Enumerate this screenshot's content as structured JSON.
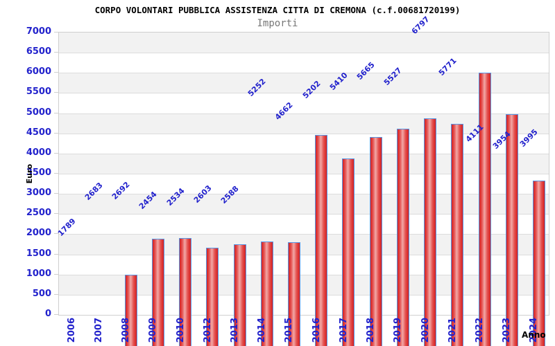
{
  "header": {
    "title": "CORPO VOLONTARI PUBBLICA ASSISTENZA CITTA DI CREMONA (c.f.00681720199)",
    "subtitle": "Importi"
  },
  "chart_data": {
    "type": "bar",
    "title": "CORPO VOLONTARI PUBBLICA ASSISTENZA CITTA DI CREMONA (c.f.00681720199)",
    "subtitle": "Importi",
    "xlabel": "Anno",
    "ylabel": "Euro",
    "categories": [
      "2006",
      "2007",
      "2008",
      "2009",
      "2010",
      "2012",
      "2013",
      "2014",
      "2015",
      "2016",
      "2017",
      "2018",
      "2019",
      "2020",
      "2021",
      "2022",
      "2023",
      "2024"
    ],
    "values": [
      1789,
      2683,
      2692,
      2454,
      2534,
      2603,
      2588,
      5252,
      4662,
      5202,
      5410,
      5665,
      5527,
      6797,
      5771,
      4111,
      3954,
      3995
    ],
    "ylim": [
      0,
      7000
    ],
    "ytick_step": 500,
    "yticks": [
      0,
      500,
      1000,
      1500,
      2000,
      2500,
      3000,
      3500,
      4000,
      4500,
      5000,
      5500,
      6000,
      6500,
      7000
    ],
    "grid": "horizontal-bands",
    "legend": "none",
    "colors": {
      "bar_edge": "#d42020",
      "bar_center": "#f2a8a6",
      "bar_border": "#5596e6",
      "label_blue": "#2222cc",
      "band_gray": "#f2f2f2",
      "band_white": "#ffffff",
      "grid_line": "#dcdcdc",
      "plot_border": "#cfcfcf",
      "title_color": "#000000",
      "subtitle_color": "#777777"
    }
  }
}
